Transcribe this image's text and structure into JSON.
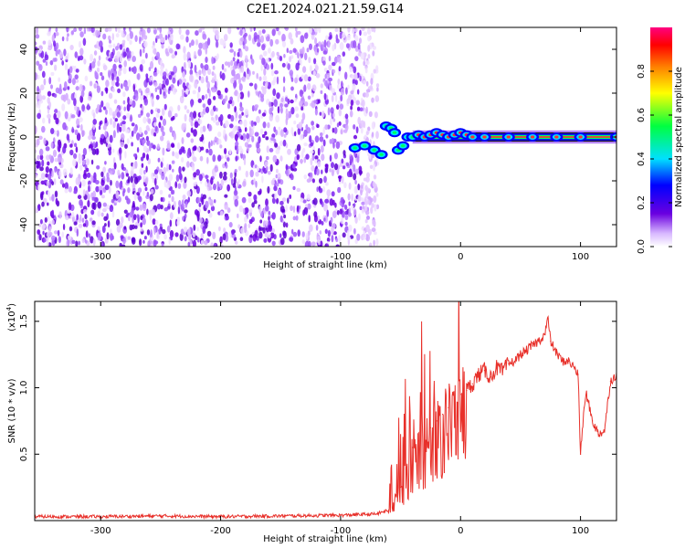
{
  "title": "C2E1.2024.021.21.59.G14",
  "colors": {
    "snr_line": "#e8302a",
    "spectrogram": "#6a00e0",
    "axis": "#000000"
  },
  "chart_data": [
    {
      "type": "heatmap",
      "xlabel": "Height of straight line (km)",
      "ylabel": "Frequency (Hz)",
      "xlim": [
        -355,
        130
      ],
      "ylim": [
        -50,
        50
      ],
      "x_ticks": [
        -300,
        -200,
        -100,
        0,
        100
      ],
      "x_tick_labels": [
        "-300",
        "-200",
        "-100",
        "0",
        "100"
      ],
      "y_ticks": [
        -40,
        -20,
        0,
        20,
        40
      ],
      "y_tick_labels": [
        "-40",
        "-20",
        "0",
        "20",
        "40"
      ],
      "noise_region_x": [
        -355,
        -75
      ],
      "signal_trace": {
        "x": [
          -88,
          -80,
          -72,
          -66,
          -62,
          -58,
          -55,
          -52,
          -48,
          -44,
          -40,
          -35,
          -30,
          -25,
          -20,
          -15,
          -10,
          -5,
          0,
          5,
          10,
          20,
          40,
          60,
          80,
          100,
          130
        ],
        "y": [
          -5,
          -4,
          -6,
          -8,
          5,
          4,
          2,
          -6,
          -4,
          0,
          0,
          1,
          0,
          1,
          2,
          1,
          0,
          1,
          2,
          1,
          0,
          0,
          0,
          0,
          0,
          0,
          0
        ]
      },
      "colorbar": {
        "label": "Normalized spectral amplitude",
        "range": [
          0,
          1
        ],
        "ticks": [
          0.0,
          0.2,
          0.4,
          0.6,
          0.8
        ],
        "tick_labels": [
          "0.0",
          "0.2",
          "0.4",
          "0.6",
          "0.8"
        ]
      }
    },
    {
      "type": "line",
      "xlabel": "Height of straight line (km)",
      "ylabel": "SNR (10 * v/v)",
      "y_scale_label": "(x10",
      "y_scale_exponent": "4",
      "xlim": [
        -355,
        130
      ],
      "ylim": [
        0,
        16500
      ],
      "x_ticks": [
        -300,
        -200,
        -100,
        0,
        100
      ],
      "x_tick_labels": [
        "-300",
        "-200",
        "-100",
        "0",
        "100"
      ],
      "y_ticks": [
        5000,
        10000,
        15000
      ],
      "y_tick_labels": [
        "0.5",
        "1.0",
        "1.5"
      ],
      "series": [
        {
          "x": [
            -355,
            -300,
            -250,
            -200,
            -150,
            -100,
            -70,
            -60,
            -50,
            -45,
            -40,
            -35,
            -30,
            -25,
            -20,
            -15,
            -10,
            -5,
            0,
            5,
            10,
            15,
            20,
            25,
            30,
            35,
            40,
            45,
            50,
            55,
            60,
            65,
            70,
            73,
            75,
            80,
            85,
            90,
            95,
            98,
            100,
            103,
            105,
            110,
            115,
            120,
            125,
            130
          ],
          "y": [
            300,
            300,
            350,
            300,
            350,
            400,
            500,
            800,
            2500,
            4000,
            5500,
            6000,
            6500,
            7000,
            7500,
            8000,
            8500,
            9000,
            9500,
            9800,
            10300,
            11000,
            11300,
            10800,
            11500,
            11200,
            11800,
            12000,
            12500,
            12800,
            13200,
            13500,
            14000,
            15200,
            13500,
            12600,
            12000,
            12000,
            11500,
            11000,
            5000,
            8500,
            9500,
            7500,
            6500,
            6800,
            10500,
            11000
          ]
        }
      ]
    }
  ]
}
